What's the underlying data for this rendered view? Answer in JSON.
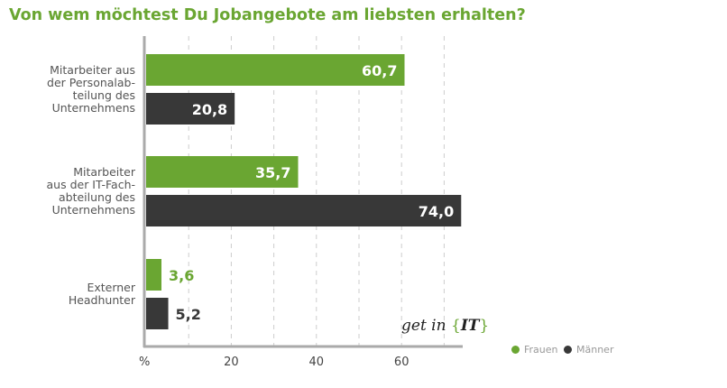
{
  "chart_data": {
    "type": "bar",
    "orientation": "horizontal",
    "title": "Von wem möchtest Du Jobangebote am liebsten erhalten?",
    "xlabel": "%",
    "xlim": [
      0,
      74
    ],
    "xticks": [
      "20",
      "40",
      "60"
    ],
    "grid": "vertical dashed every 10",
    "categories": [
      [
        "Mitarbeiter aus",
        "der Personalab-",
        "teilung des",
        "Unternehmens"
      ],
      [
        "Mitarbeiter",
        "aus der IT-Fach-",
        "abteilung des",
        "Unternehmens"
      ],
      [
        "Externer",
        "Headhunter"
      ]
    ],
    "series": [
      {
        "name": "Frauen",
        "color": "#6aa632",
        "values": [
          60.7,
          35.7,
          3.6
        ],
        "labels": [
          "60,7",
          "35,7",
          "3,6"
        ]
      },
      {
        "name": "Männer",
        "color": "#383838",
        "values": [
          20.8,
          74.0,
          5.2
        ],
        "labels": [
          "20,8",
          "74,0",
          "5,2"
        ]
      }
    ],
    "legend": "bottom-right"
  },
  "logo": {
    "text1": "get in",
    "text2": "IT",
    "open": "{",
    "close": "}"
  }
}
